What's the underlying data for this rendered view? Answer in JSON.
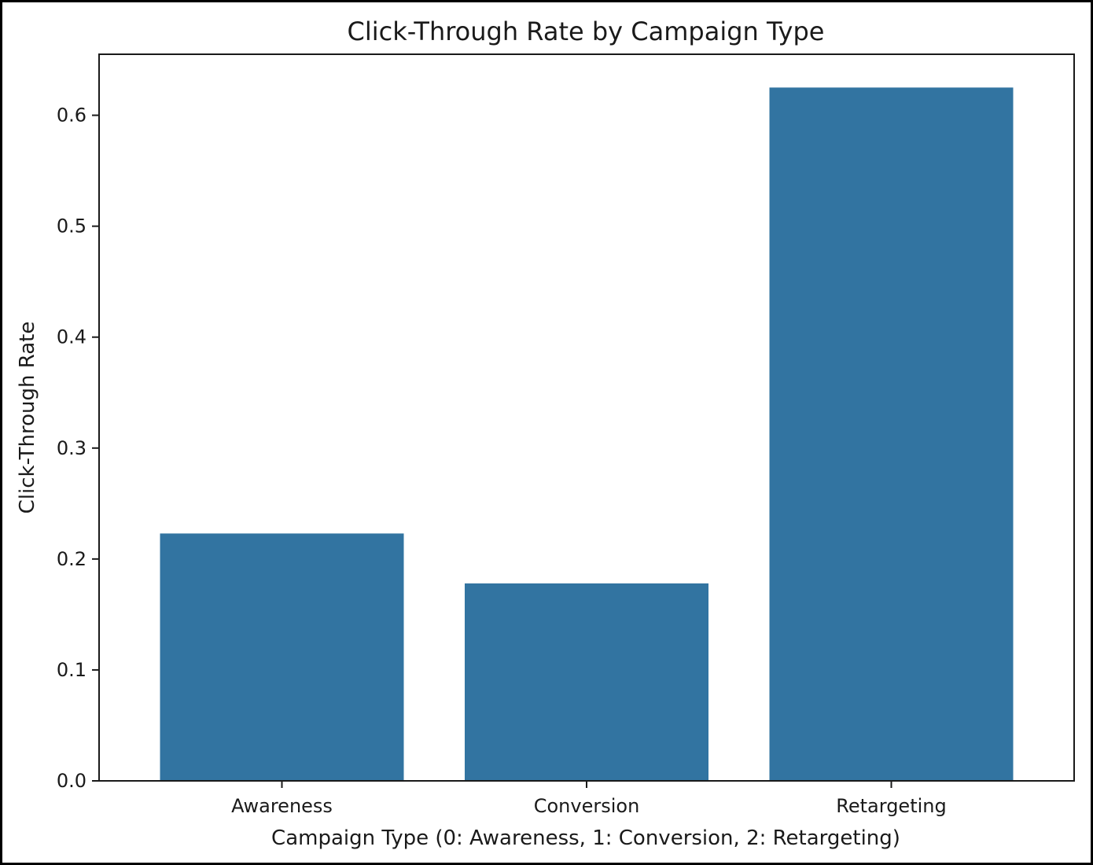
{
  "chart_data": {
    "type": "bar",
    "title": "Click-Through Rate by Campaign Type",
    "xlabel": "Campaign Type (0: Awareness, 1: Conversion, 2: Retargeting)",
    "ylabel": "Click-Through Rate",
    "categories": [
      "Awareness",
      "Conversion",
      "Retargeting"
    ],
    "values": [
      0.223,
      0.178,
      0.625
    ],
    "ylim": [
      0,
      0.655
    ],
    "yticks": [
      0.0,
      0.1,
      0.2,
      0.3,
      0.4,
      0.5,
      0.6
    ],
    "ytick_labels": [
      "0.0",
      "0.1",
      "0.2",
      "0.3",
      "0.4",
      "0.5",
      "0.6"
    ],
    "bar_color": "#3274a1",
    "grid": false,
    "legend": "none"
  }
}
